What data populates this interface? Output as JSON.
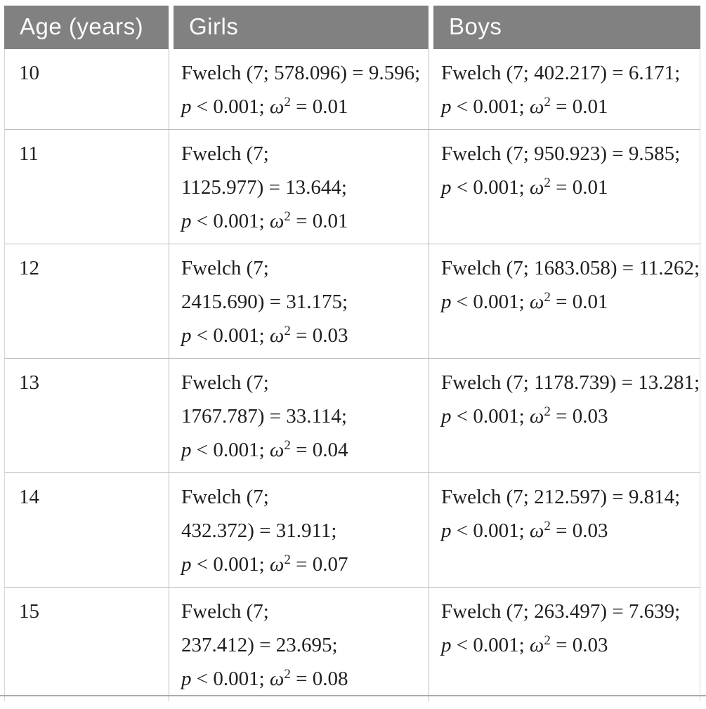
{
  "table": {
    "columns": [
      {
        "label": "Age (years)"
      },
      {
        "label": "Girls"
      },
      {
        "label": "Boys"
      }
    ],
    "rows": [
      {
        "age": "10",
        "girls_lines": [
          "Fwelch (7; 578.096) = 9.596;",
          "p < 0.001; ω² = 0.01"
        ],
        "boys_lines": [
          "Fwelch (7; 402.217) = 6.171;",
          "p < 0.001; ω² = 0.01"
        ]
      },
      {
        "age": "11",
        "girls_lines": [
          "Fwelch (7;",
          "1125.977) = 13.644;",
          "p < 0.001; ω² = 0.01"
        ],
        "boys_lines": [
          "Fwelch (7; 950.923) = 9.585;",
          "p < 0.001; ω² = 0.01"
        ]
      },
      {
        "age": "12",
        "girls_lines": [
          "Fwelch (7;",
          "2415.690) = 31.175;",
          "p < 0.001; ω² = 0.03"
        ],
        "boys_lines": [
          "Fwelch (7; 1683.058) = 11.262;",
          "p < 0.001; ω² = 0.01"
        ]
      },
      {
        "age": "13",
        "girls_lines": [
          "Fwelch (7;",
          "1767.787) = 33.114;",
          "p < 0.001; ω² = 0.04"
        ],
        "boys_lines": [
          "Fwelch (7; 1178.739) = 13.281;",
          "p < 0.001; ω² = 0.03"
        ]
      },
      {
        "age": "14",
        "girls_lines": [
          "Fwelch (7;",
          "432.372) = 31.911;",
          "p < 0.001; ω² = 0.07"
        ],
        "boys_lines": [
          "Fwelch (7; 212.597) = 9.814;",
          "p < 0.001; ω² = 0.03"
        ]
      },
      {
        "age": "15",
        "girls_lines": [
          "Fwelch (7;",
          "237.412) = 23.695;",
          "p < 0.001; ω² = 0.08"
        ],
        "boys_lines": [
          "Fwelch (7; 263.497) = 7.639;",
          "p < 0.001; ω² = 0.03"
        ]
      }
    ]
  },
  "colors": {
    "header_bg": "#818181",
    "header_text": "#fafafa",
    "inner_border": "#bcbcbc",
    "outer_border": "#d7d7d7",
    "bottom_rule": "#ababab",
    "body_text": "#1f1f1f"
  }
}
